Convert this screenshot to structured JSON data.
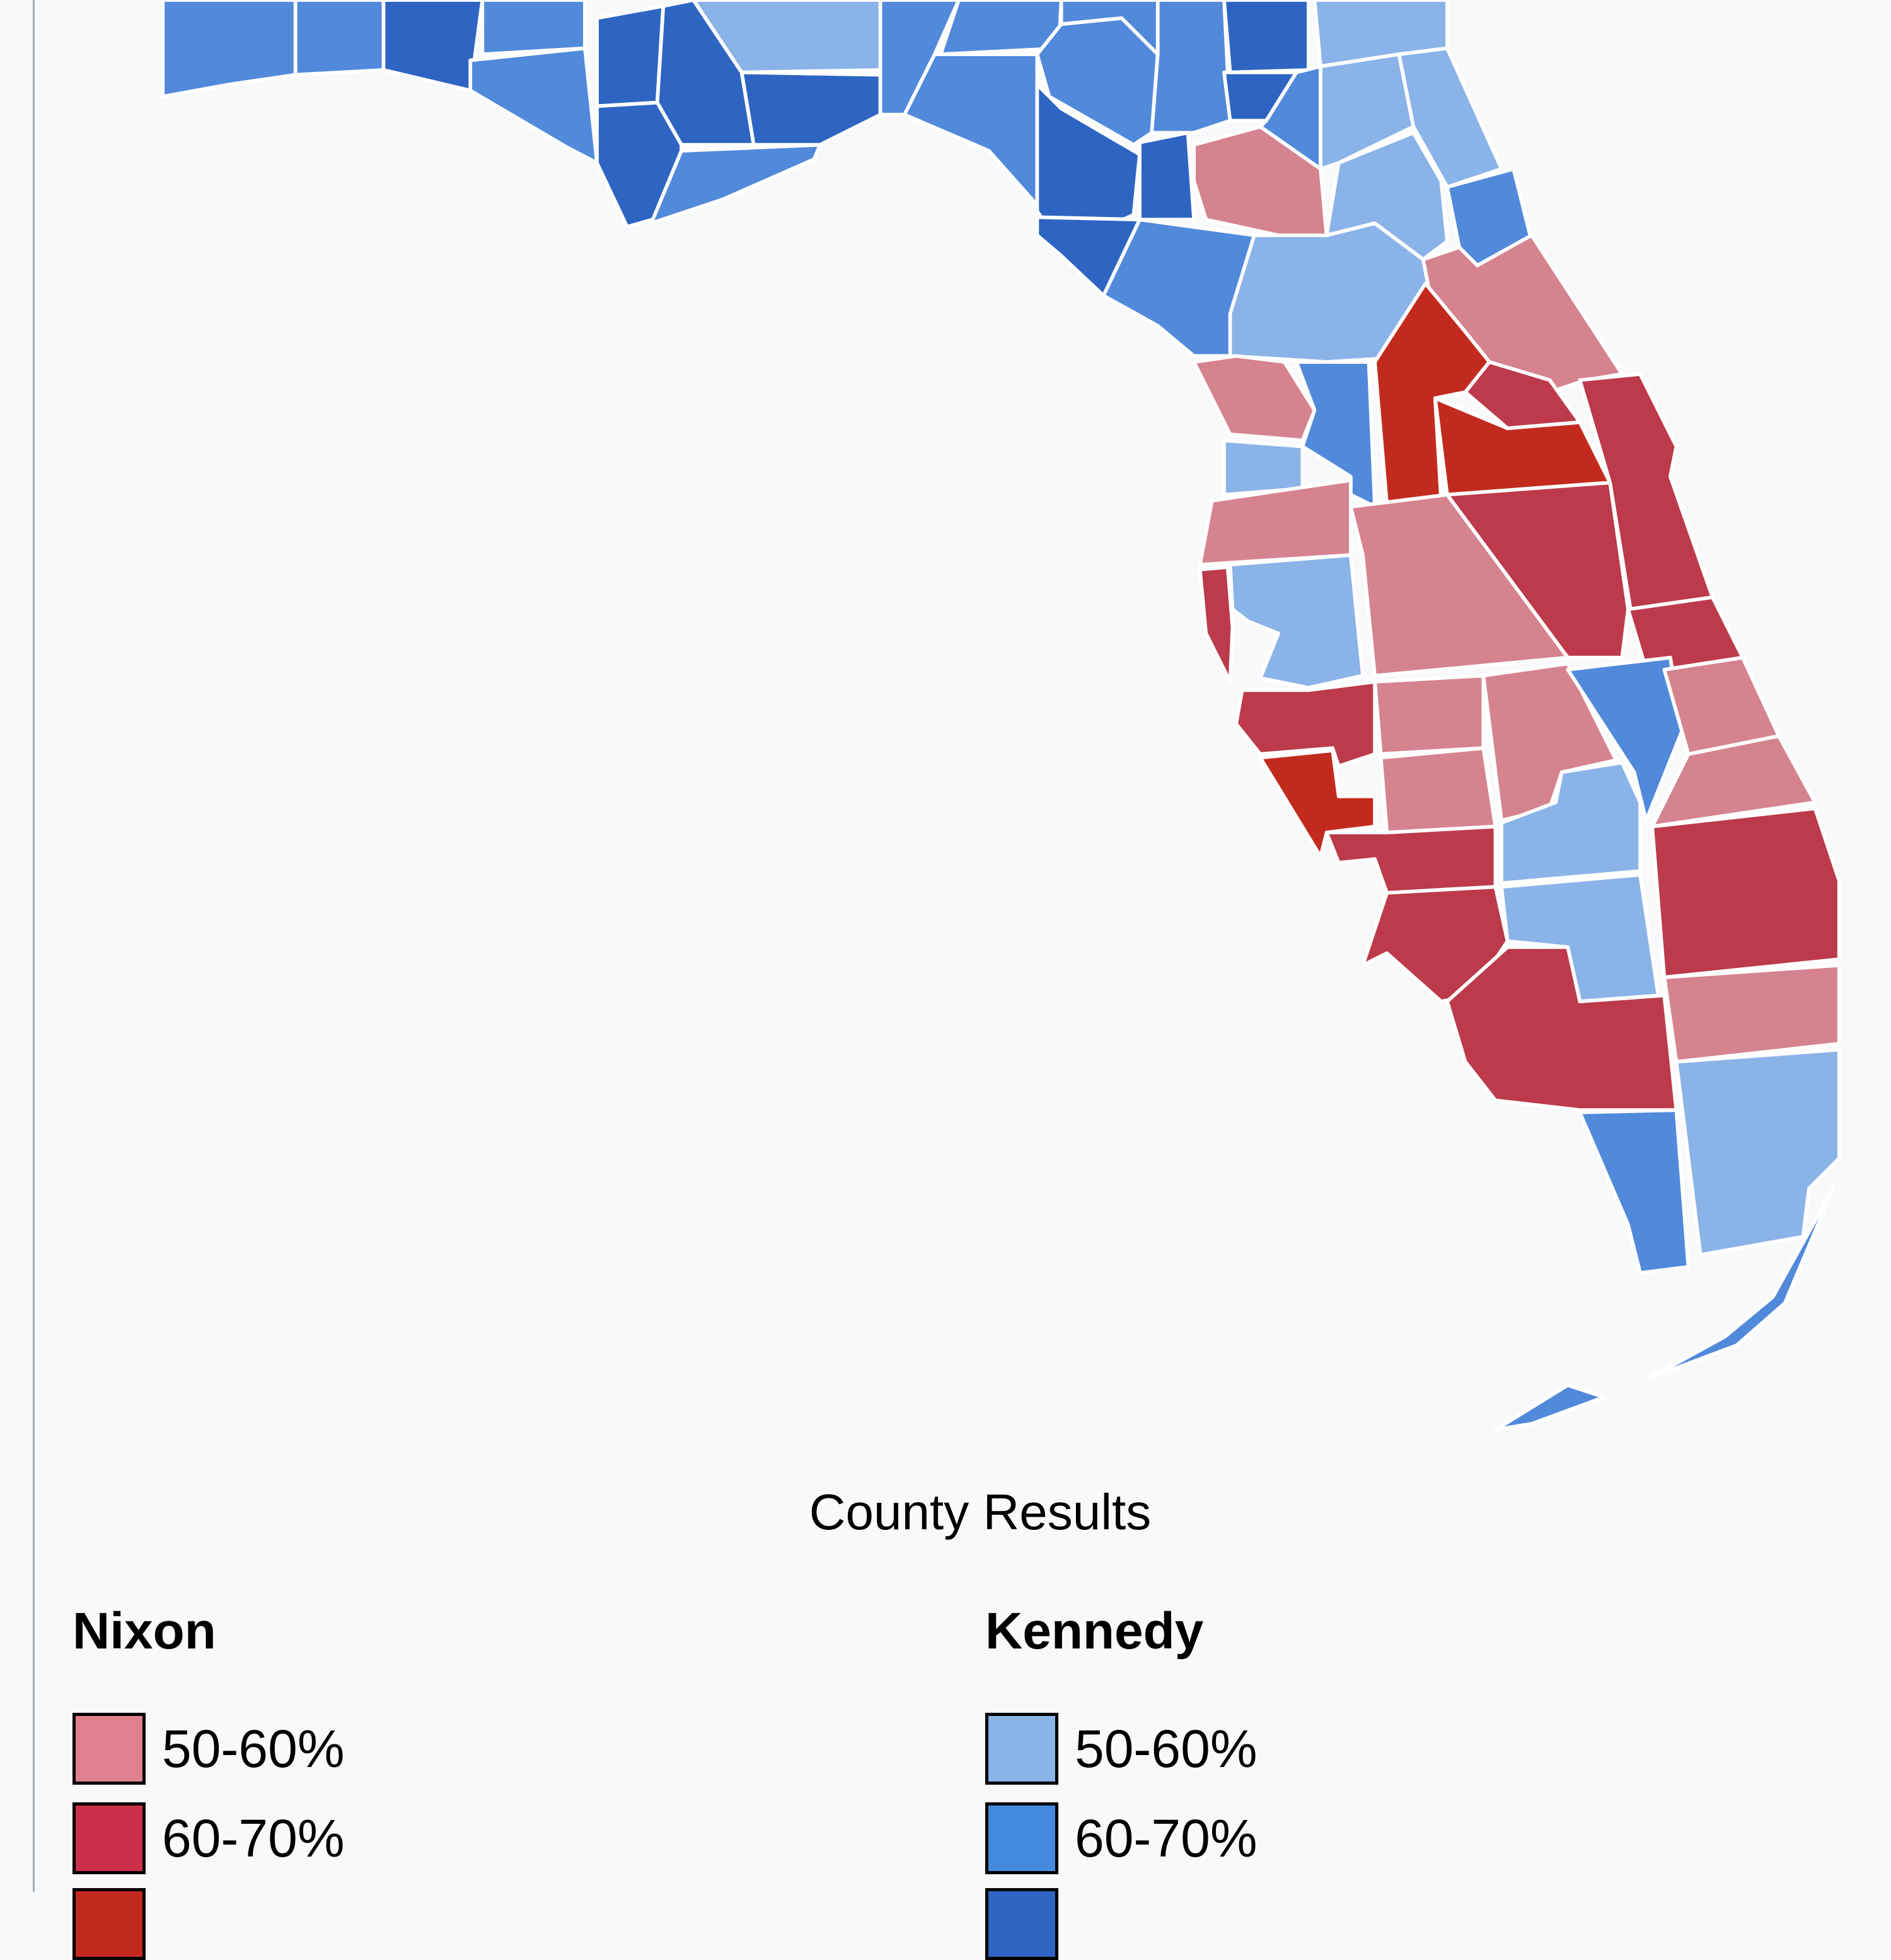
{
  "map": {
    "caption": "County Results",
    "colors": {
      "nixon_50_60": "#d5838f",
      "nixon_60_70": "#bc3a4b",
      "nixon_70_80": "#c32a1e",
      "kennedy_50_60": "#8ab3e8",
      "kennedy_60_70": "#5189db",
      "kennedy_70_80": "#2e65c2"
    }
  },
  "legend": {
    "nixon": {
      "title": "Nixon",
      "items": [
        {
          "label": "50-60%",
          "color": "#e0808f"
        },
        {
          "label": "60-70%",
          "color": "#cc2f4a"
        }
      ]
    },
    "kennedy": {
      "title": "Kennedy",
      "items": [
        {
          "label": "50-60%",
          "color": "#8ab3e8"
        },
        {
          "label": "60-70%",
          "color": "#4389dd"
        }
      ]
    }
  }
}
